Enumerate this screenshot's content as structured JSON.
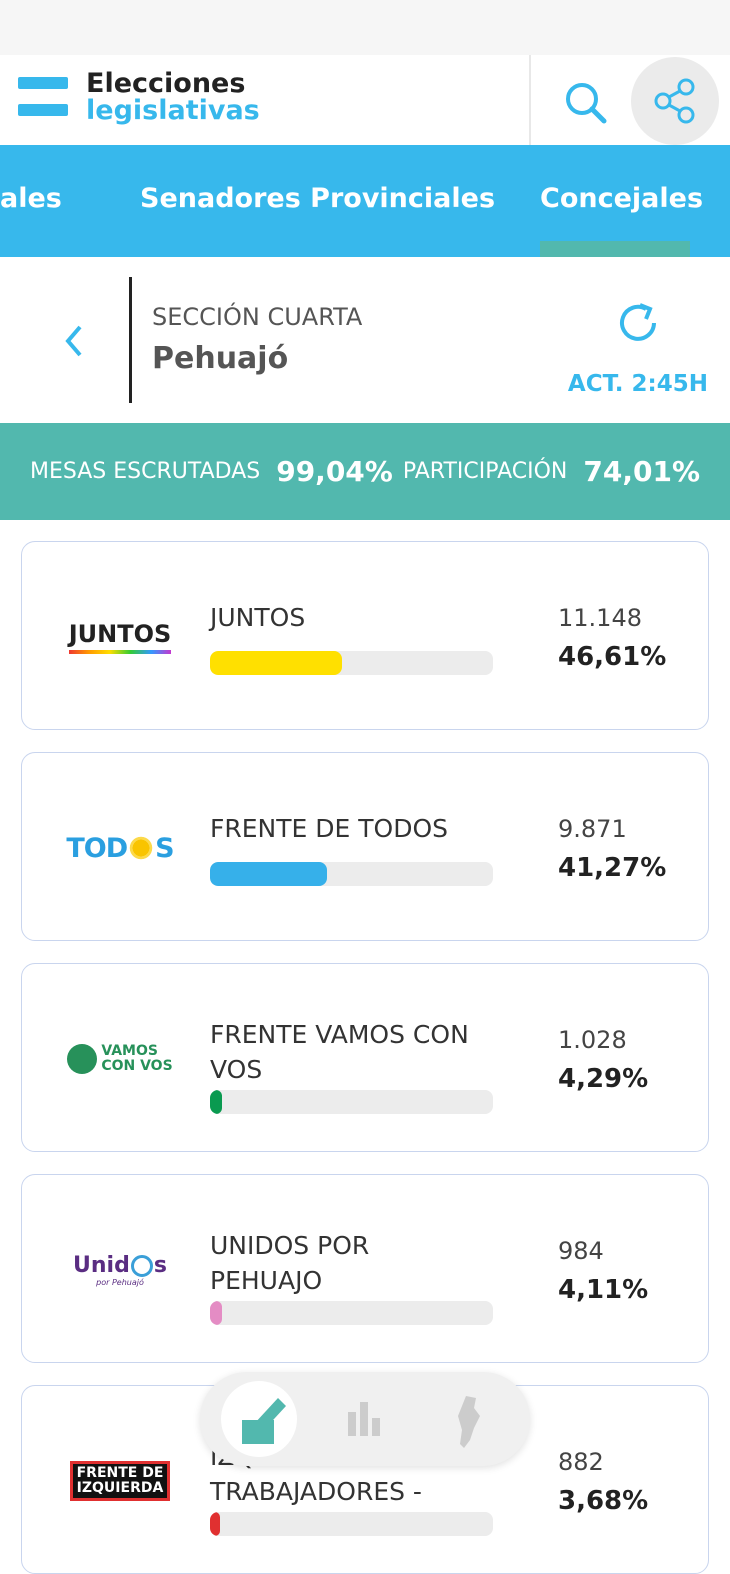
{
  "header": {
    "title": "Elecciones",
    "subtitle": "legislativas"
  },
  "tabs": [
    "ales",
    "Senadores Provinciales",
    "Concejales"
  ],
  "location": {
    "section": "SECCIÓN CUARTA",
    "name": "Pehuajó",
    "updated": "ACT. 2:45H"
  },
  "summary": {
    "mesas_label": "MESAS ESCRUTADAS",
    "mesas": "99,04%",
    "participacion_label": "PARTICIPACIÓN",
    "participacion": "74,01%"
  },
  "results": [
    {
      "logo": [
        "JUNTOS"
      ],
      "name": [
        "JUNTOS"
      ],
      "votes": "11.148",
      "percent": "46,61%",
      "color": "#ffe000"
    },
    {
      "logo": [
        "TOD",
        "S"
      ],
      "name": [
        "FRENTE DE TODOS"
      ],
      "votes": "9.871",
      "percent": "41,27%",
      "color": "#36b0ea"
    },
    {
      "logo": [
        "VAMOS",
        "CON VOS"
      ],
      "name": [
        "FRENTE VAMOS CON",
        "VOS"
      ],
      "votes": "1.028",
      "percent": "4,29%",
      "color": "#0a9a50"
    },
    {
      "logo": [
        "Unid",
        "s",
        "por Pehuajó"
      ],
      "name": [
        "UNIDOS POR",
        "PEHUAJO"
      ],
      "votes": "984",
      "percent": "4,11%",
      "color": "#e48cc4"
    },
    {
      "logo": [
        "FRENTE DE",
        "IZQUIERDA"
      ],
      "name": [
        "IZQUIERDA Y DE LOS",
        "TRABAJADORES -"
      ],
      "votes": "882",
      "percent": "3,68%",
      "color": "#e03030"
    }
  ]
}
